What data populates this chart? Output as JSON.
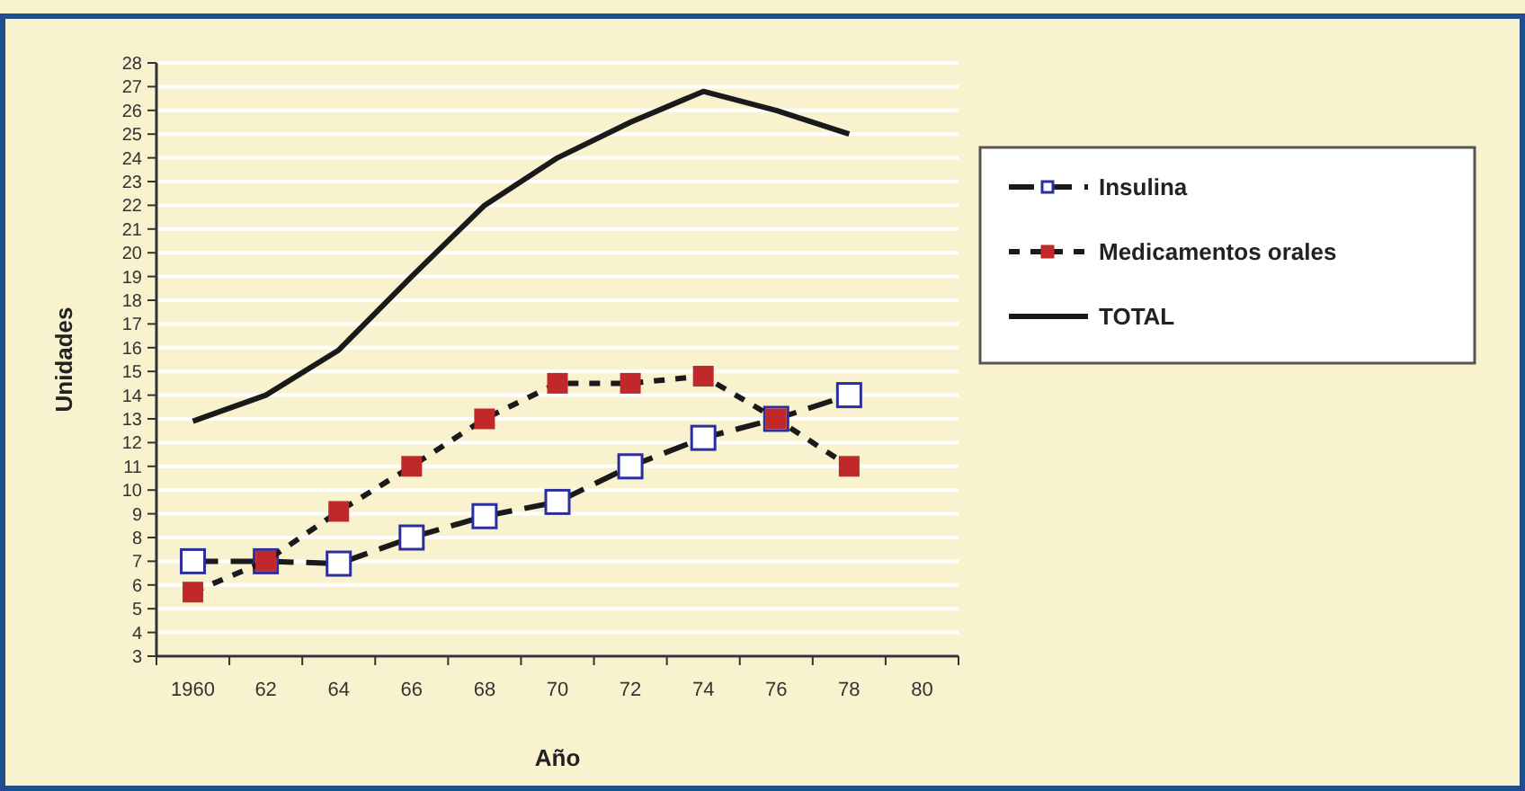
{
  "chart_data": {
    "type": "line",
    "xlabel": "Año",
    "ylabel": "Unidades",
    "categories": [
      "1960",
      "62",
      "64",
      "66",
      "68",
      "70",
      "72",
      "74",
      "76",
      "78",
      "80"
    ],
    "series": [
      {
        "name": "Insulina",
        "color": "#2b2f9e",
        "marker": "square",
        "line_style": "dashed",
        "values": [
          7,
          7,
          6.9,
          8,
          8.9,
          9.5,
          11,
          12.2,
          13,
          14,
          null
        ]
      },
      {
        "name": "Medicamentos orales",
        "color": "#c0282a",
        "marker": "square",
        "line_style": "dotted",
        "values": [
          5.7,
          7,
          9.1,
          11,
          13,
          14.5,
          14.5,
          14.8,
          13,
          11,
          null
        ]
      },
      {
        "name": "TOTAL",
        "color": "#1a1a1a",
        "marker": "none",
        "line_style": "solid",
        "values": [
          12.9,
          14,
          15.9,
          19,
          22,
          24,
          25.5,
          26.8,
          26,
          25,
          null
        ]
      }
    ],
    "ylim": [
      3,
      28
    ],
    "yticks": [
      3,
      4,
      5,
      6,
      7,
      8,
      9,
      10,
      11,
      12,
      13,
      14,
      15,
      16,
      17,
      18,
      19,
      20,
      21,
      22,
      23,
      24,
      25,
      26,
      27,
      28
    ],
    "grid": "y",
    "legend": "right"
  }
}
